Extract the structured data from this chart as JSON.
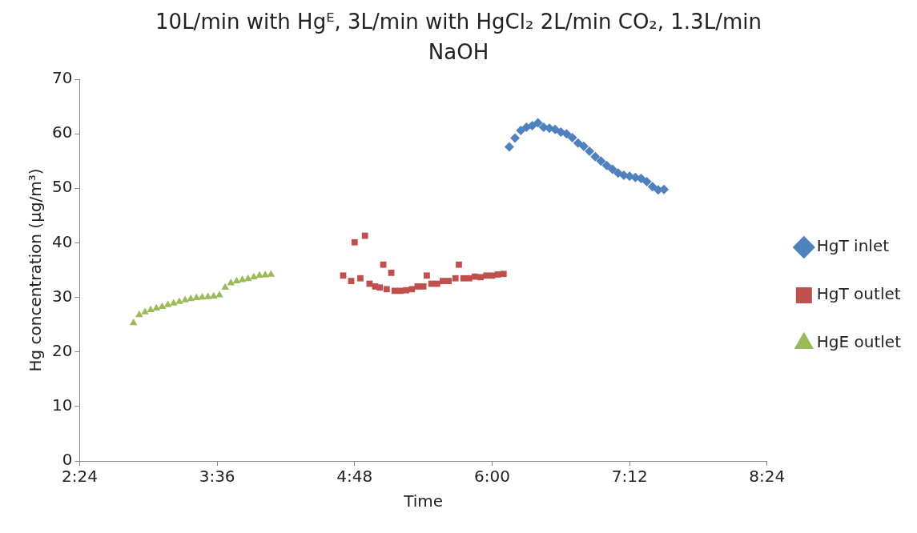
{
  "chart_data": {
    "type": "scatter",
    "title": "10L/min with Hgᴱ, 3L/min with HgCl₂ 2L/min CO₂, 1.3L/min NaOH",
    "xlabel": "Time",
    "ylabel": "Hg concentration (µg/m³)",
    "xlim": [
      2.4,
      8.4
    ],
    "xticks": [
      {
        "value": 2.4,
        "label": "2:24"
      },
      {
        "value": 3.6,
        "label": "3:36"
      },
      {
        "value": 4.8,
        "label": "4:48"
      },
      {
        "value": 6.0,
        "label": "6:00"
      },
      {
        "value": 7.2,
        "label": "7:12"
      },
      {
        "value": 8.4,
        "label": "8:24"
      }
    ],
    "ylim": [
      0,
      70
    ],
    "yticks": [
      0,
      10,
      20,
      30,
      40,
      50,
      60,
      70
    ],
    "grid": false,
    "legend": "right",
    "series": [
      {
        "name": "HgT inlet",
        "color": "#4f81bd",
        "marker": "diamond",
        "x": [
          6.15,
          6.2,
          6.25,
          6.3,
          6.35,
          6.4,
          6.45,
          6.5,
          6.55,
          6.6,
          6.65,
          6.7,
          6.75,
          6.8,
          6.85,
          6.9,
          6.95,
          7.0,
          7.05,
          7.1,
          7.15,
          7.2,
          7.25,
          7.3,
          7.35,
          7.4,
          7.45,
          7.5
        ],
        "values": [
          57.6,
          59.2,
          60.6,
          61.2,
          61.5,
          62,
          61.2,
          61,
          60.8,
          60.3,
          60,
          59.3,
          58.3,
          57.7,
          56.8,
          55.8,
          55,
          54.2,
          53.5,
          52.8,
          52.4,
          52.2,
          52,
          51.8,
          51.2,
          50.3,
          49.7,
          49.8
        ]
      },
      {
        "name": "HgT outlet",
        "color": "#c0504d",
        "marker": "square",
        "x": [
          4.7,
          4.77,
          4.8,
          4.85,
          4.89,
          4.93,
          4.98,
          5.02,
          5.05,
          5.08,
          5.12,
          5.15,
          5.2,
          5.25,
          5.3,
          5.35,
          5.4,
          5.43,
          5.47,
          5.52,
          5.57,
          5.62,
          5.68,
          5.71,
          5.75,
          5.8,
          5.85,
          5.9,
          5.95,
          6.0,
          6.05,
          6.1
        ],
        "values": [
          34,
          33,
          40.1,
          33.5,
          41.3,
          32.5,
          32,
          31.8,
          36,
          31.5,
          34.5,
          31.2,
          31.2,
          31.3,
          31.5,
          32,
          32,
          34,
          32.5,
          32.5,
          33,
          33,
          33.5,
          36,
          33.5,
          33.5,
          33.8,
          33.7,
          34,
          34,
          34.2,
          34.3
        ]
      },
      {
        "name": "HgE outlet",
        "color": "#9bbb59",
        "marker": "triangle",
        "x": [
          2.87,
          2.92,
          2.97,
          3.02,
          3.07,
          3.12,
          3.17,
          3.22,
          3.27,
          3.32,
          3.37,
          3.42,
          3.47,
          3.52,
          3.57,
          3.62,
          3.67,
          3.72,
          3.77,
          3.82,
          3.87,
          3.92,
          3.97,
          4.02,
          4.07
        ],
        "values": [
          25.3,
          26.8,
          27.3,
          27.7,
          28,
          28.3,
          28.6,
          28.9,
          29.2,
          29.5,
          29.7,
          29.9,
          30,
          30.1,
          30.2,
          30.4,
          31.8,
          32.6,
          33,
          33.2,
          33.4,
          33.7,
          34,
          34.1,
          34.2
        ]
      }
    ]
  }
}
